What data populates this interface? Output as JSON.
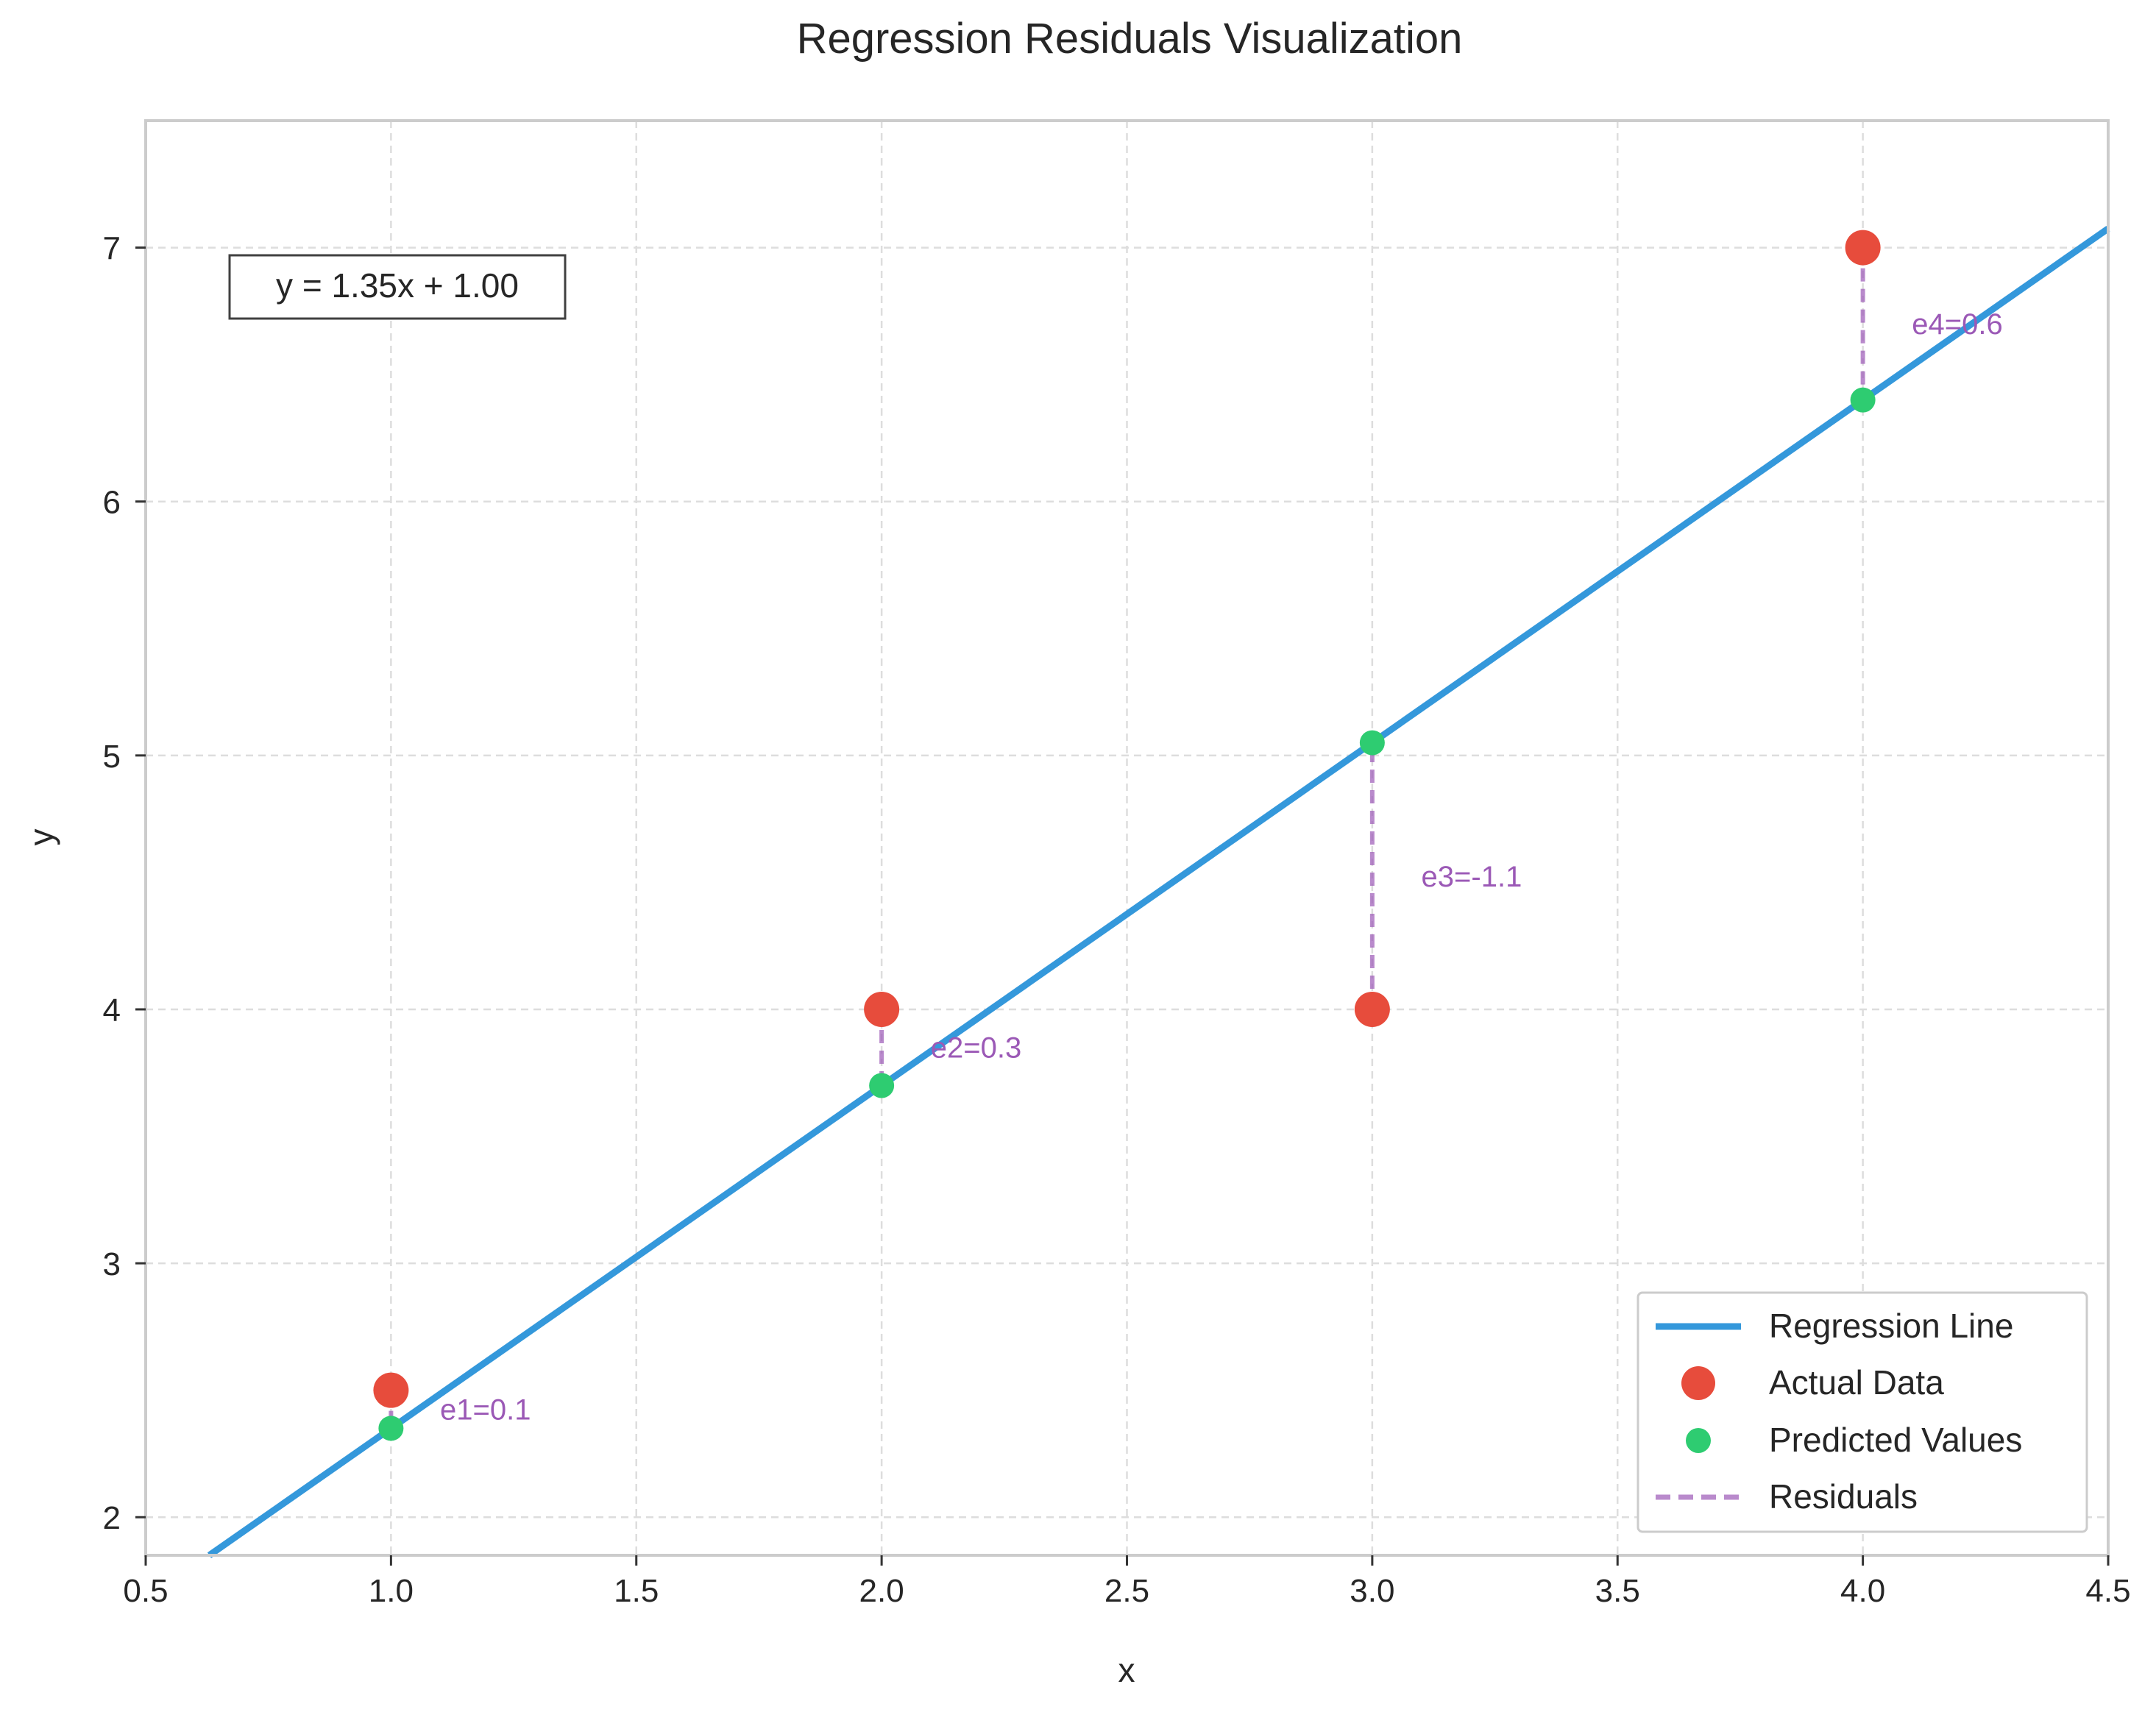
{
  "chart_data": {
    "type": "scatter",
    "title": "Regression Residuals Visualization",
    "xlabel": "x",
    "ylabel": "y",
    "xlim": [
      0.5,
      4.5
    ],
    "ylim": [
      1.85,
      7.5
    ],
    "xticks": [
      0.5,
      1.0,
      1.5,
      2.0,
      2.5,
      3.0,
      3.5,
      4.0,
      4.5
    ],
    "xtick_labels": [
      "0.5",
      "1.0",
      "1.5",
      "2.0",
      "2.5",
      "3.0",
      "3.5",
      "4.0",
      "4.5"
    ],
    "yticks": [
      2,
      3,
      4,
      5,
      6,
      7
    ],
    "ytick_labels": [
      "2",
      "3",
      "4",
      "5",
      "6",
      "7"
    ],
    "grid": true,
    "regression": {
      "slope": 1.35,
      "intercept": 1.0,
      "label": "Regression Line",
      "color": "#3498db"
    },
    "equation_text": "y = 1.35x + 1.00",
    "series": [
      {
        "name": "Actual Data",
        "color": "#e74c3c",
        "x": [
          1,
          2,
          3,
          4
        ],
        "y": [
          2.5,
          4.0,
          4.0,
          7.0
        ]
      },
      {
        "name": "Predicted Values",
        "color": "#2ecc71",
        "x": [
          1,
          2,
          3,
          4
        ],
        "y": [
          2.35,
          3.7,
          5.05,
          6.4
        ]
      }
    ],
    "residuals": {
      "name": "Residuals",
      "color": "#9b59b6",
      "labels": [
        "e1=0.1",
        "e2=0.3",
        "e3=-1.1",
        "e4=0.6"
      ]
    },
    "legend": {
      "position": "bottom-right",
      "entries": [
        "Regression Line",
        "Actual Data",
        "Predicted Values",
        "Residuals"
      ]
    }
  }
}
